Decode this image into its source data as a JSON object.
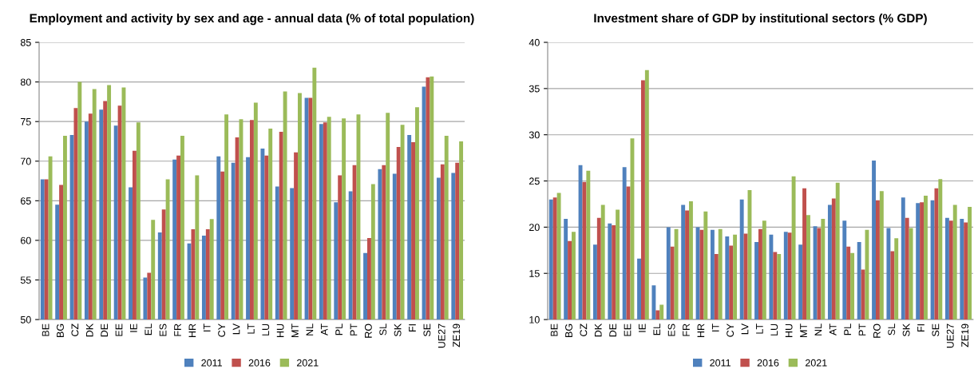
{
  "chart_data": [
    {
      "type": "bar",
      "title": "Employment and activity by sex and age - annual data (% of total population)",
      "categories": [
        "BE",
        "BG",
        "CZ",
        "DK",
        "DE",
        "EE",
        "IE",
        "EL",
        "ES",
        "FR",
        "HR",
        "IT",
        "CY",
        "LV",
        "LT",
        "LU",
        "HU",
        "MT",
        "NL",
        "AT",
        "PL",
        "PT",
        "RO",
        "SL",
        "SK",
        "FI",
        "SE",
        "UE27",
        "ZE19"
      ],
      "series": [
        {
          "name": "2011",
          "color": "#4f81bd",
          "values": [
            67.7,
            64.5,
            73.3,
            75.0,
            76.5,
            74.5,
            66.7,
            55.3,
            61.0,
            70.2,
            59.6,
            60.6,
            70.6,
            69.8,
            70.5,
            71.6,
            66.8,
            66.6,
            78.0,
            74.7,
            64.8,
            66.2,
            58.4,
            69.0,
            68.4,
            73.3,
            79.4,
            67.9,
            68.5
          ]
        },
        {
          "name": "2016",
          "color": "#c0504d",
          "values": [
            67.7,
            67.0,
            76.7,
            76.0,
            77.6,
            77.0,
            71.3,
            55.9,
            63.9,
            70.7,
            61.4,
            61.4,
            68.7,
            73.0,
            75.2,
            70.7,
            73.7,
            71.1,
            78.0,
            74.9,
            68.2,
            69.5,
            60.3,
            69.5,
            71.8,
            72.4,
            80.6,
            69.6,
            69.8
          ]
        },
        {
          "name": "2021",
          "color": "#9bbb59",
          "values": [
            70.6,
            73.2,
            80.0,
            79.1,
            79.6,
            79.3,
            74.9,
            62.6,
            67.7,
            73.2,
            68.2,
            62.7,
            75.9,
            75.3,
            77.4,
            74.1,
            78.8,
            78.6,
            81.8,
            75.6,
            75.4,
            75.9,
            67.1,
            76.1,
            74.6,
            76.8,
            80.7,
            73.2,
            72.5
          ]
        }
      ],
      "ylim": [
        50,
        85
      ],
      "yticks": [
        50,
        55,
        60,
        65,
        70,
        75,
        80,
        85
      ],
      "grid": "y",
      "legend": "bottom"
    },
    {
      "type": "bar",
      "title": "Investment share of GDP by institutional sectors (% GDP)",
      "categories": [
        "BE",
        "BG",
        "CZ",
        "DK",
        "DE",
        "EE",
        "IE",
        "EL",
        "ES",
        "FR",
        "HR",
        "IT",
        "CY",
        "LV",
        "LT",
        "LU",
        "HU",
        "MT",
        "NL",
        "AT",
        "PL",
        "PT",
        "RO",
        "SL",
        "SK",
        "FI",
        "SE",
        "UE27",
        "ZE19"
      ],
      "series": [
        {
          "name": "2011",
          "color": "#4f81bd",
          "values": [
            23.0,
            20.9,
            26.7,
            18.1,
            20.4,
            26.5,
            16.6,
            13.7,
            20.0,
            22.4,
            20.0,
            19.7,
            19.0,
            23.0,
            18.4,
            19.2,
            19.5,
            18.1,
            20.1,
            22.4,
            20.7,
            18.4,
            27.2,
            19.9,
            23.2,
            22.6,
            22.9,
            21.0,
            20.9
          ]
        },
        {
          "name": "2016",
          "color": "#c0504d",
          "values": [
            23.2,
            18.5,
            24.9,
            21.0,
            20.2,
            24.4,
            35.9,
            11.0,
            17.9,
            21.8,
            19.7,
            17.1,
            18.0,
            19.3,
            19.8,
            17.3,
            19.4,
            24.2,
            19.9,
            23.1,
            17.9,
            15.4,
            22.9,
            17.4,
            21.0,
            22.7,
            24.2,
            20.7,
            20.5
          ]
        },
        {
          "name": "2021",
          "color": "#9bbb59",
          "values": [
            23.7,
            19.5,
            26.1,
            22.4,
            21.9,
            29.6,
            37.0,
            11.6,
            19.8,
            22.8,
            21.7,
            19.8,
            19.2,
            24.0,
            20.7,
            17.1,
            25.5,
            21.3,
            20.9,
            24.8,
            17.2,
            19.7,
            23.9,
            18.8,
            19.9,
            23.4,
            25.2,
            22.4,
            22.2
          ]
        }
      ],
      "ylim": [
        10,
        40
      ],
      "yticks": [
        10,
        15,
        20,
        25,
        30,
        35,
        40
      ],
      "grid": "y",
      "legend": "bottom"
    }
  ]
}
